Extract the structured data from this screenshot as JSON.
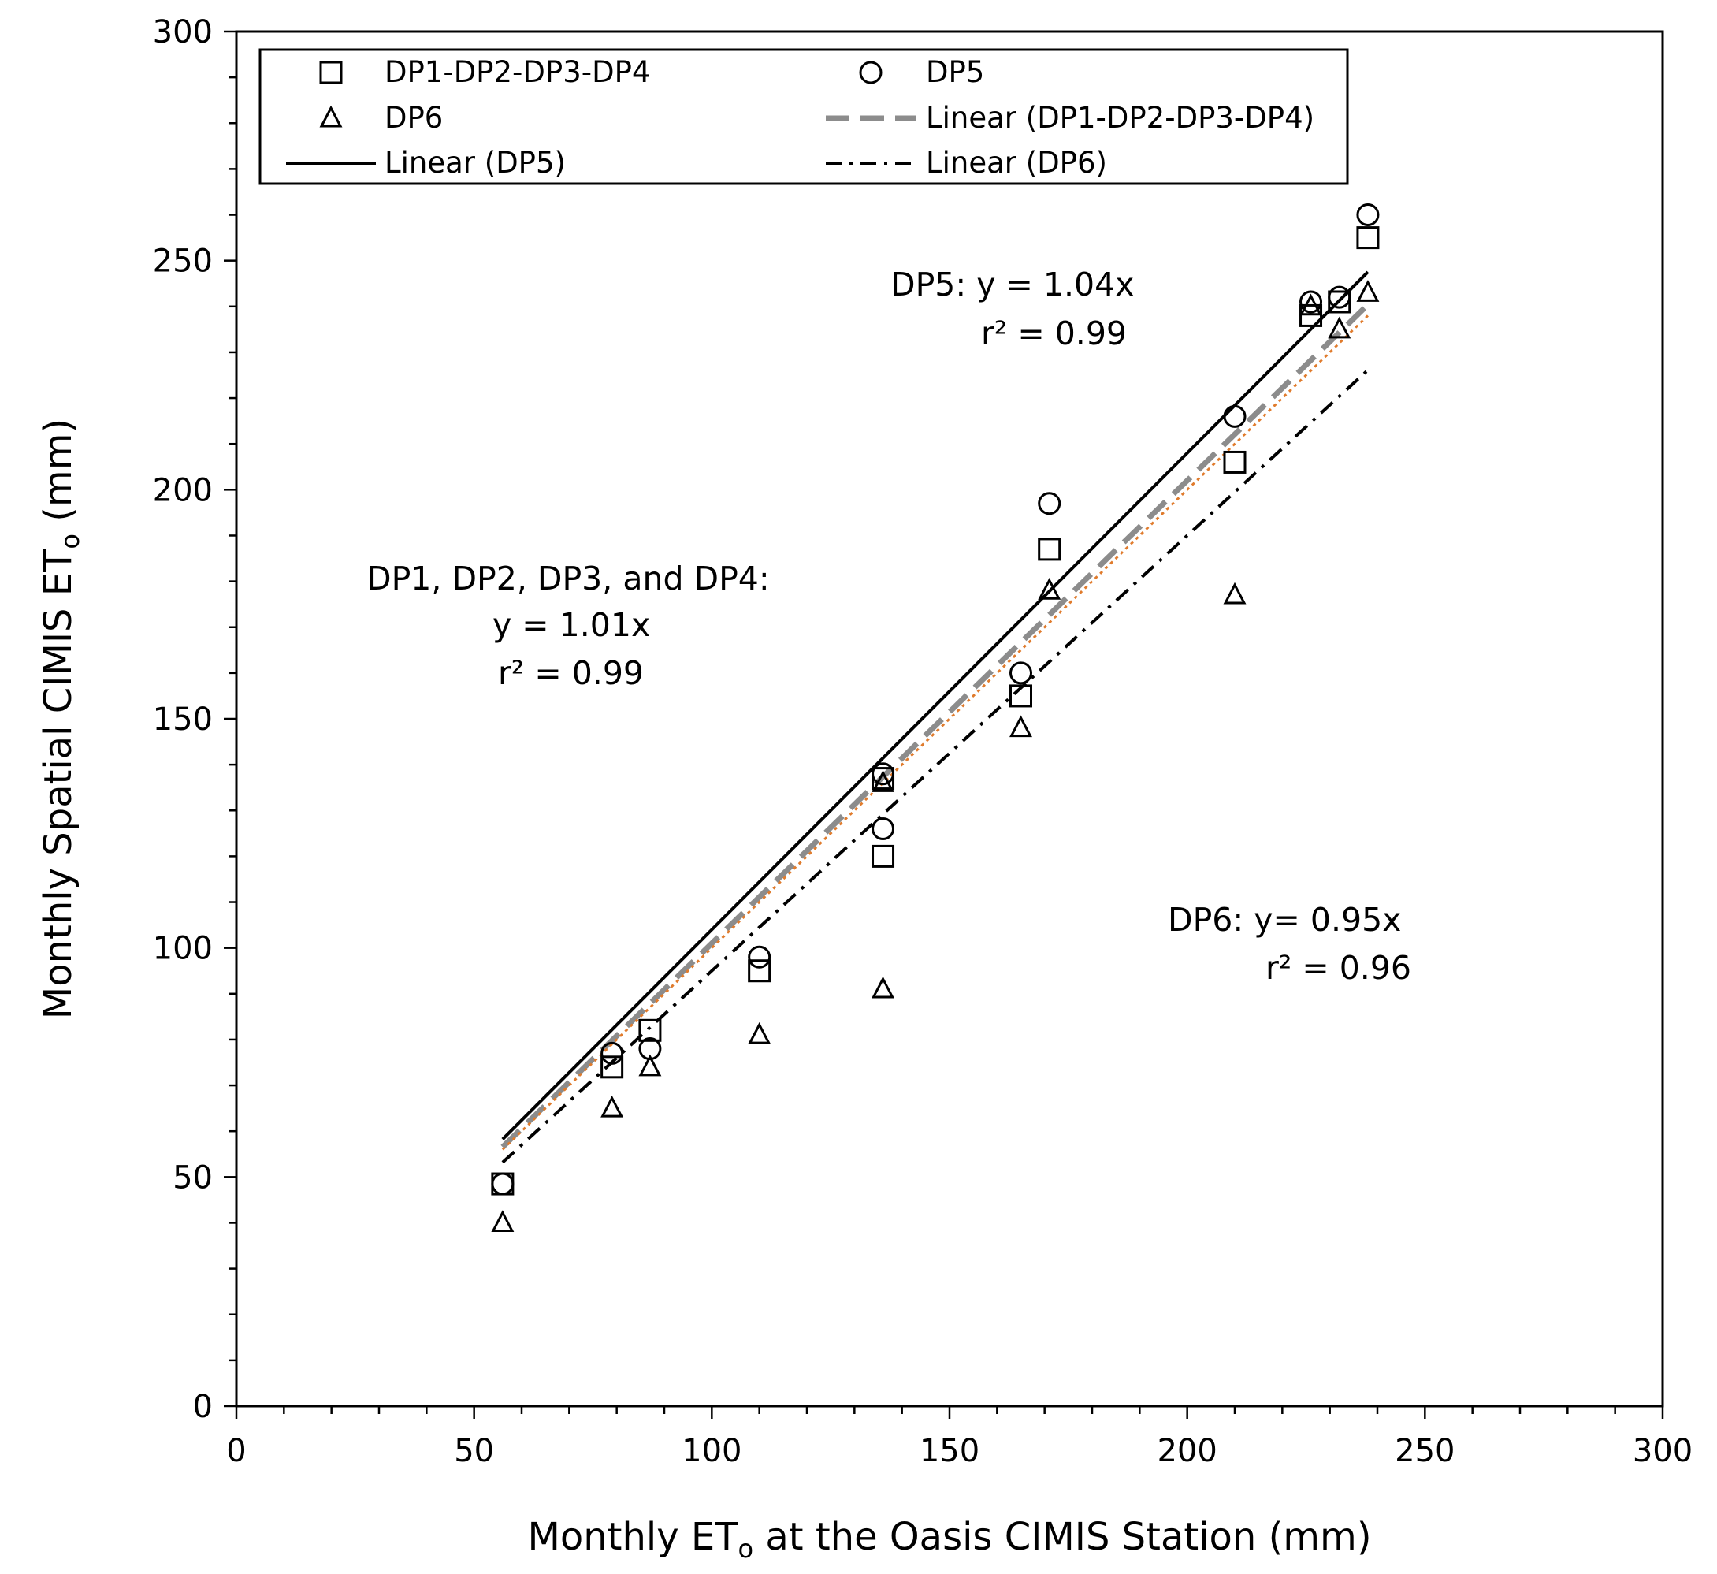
{
  "chart_data": {
    "type": "scatter",
    "xlabel": {
      "prefix": "Monthly ET",
      "sub": "o",
      "suffix": " at the Oasis CIMIS Station (mm)"
    },
    "ylabel": {
      "prefix": "Monthly Spatial CIMIS ET",
      "sub": "o",
      "suffix": " (mm)"
    },
    "xlim": [
      0,
      300
    ],
    "ylim": [
      0,
      300
    ],
    "xticks": [
      0,
      50,
      100,
      150,
      200,
      250,
      300
    ],
    "yticks": [
      0,
      50,
      100,
      150,
      200,
      250,
      300
    ],
    "minor_tick_step": 10,
    "grid": false,
    "legend_position": "top",
    "series": [
      {
        "name": "DP1-DP2-DP3-DP4",
        "marker": "square",
        "points": [
          [
            56,
            48.5
          ],
          [
            79,
            74
          ],
          [
            87,
            82
          ],
          [
            110,
            95
          ],
          [
            136,
            120
          ],
          [
            136,
            137
          ],
          [
            165,
            155
          ],
          [
            171,
            187
          ],
          [
            210,
            206
          ],
          [
            226,
            238
          ],
          [
            232,
            241
          ],
          [
            238,
            255
          ]
        ]
      },
      {
        "name": "DP5",
        "marker": "circle",
        "points": [
          [
            56,
            48.5
          ],
          [
            79,
            77
          ],
          [
            87,
            78
          ],
          [
            110,
            98
          ],
          [
            136,
            126
          ],
          [
            136,
            138
          ],
          [
            165,
            160
          ],
          [
            171,
            197
          ],
          [
            210,
            216
          ],
          [
            226,
            241
          ],
          [
            232,
            242
          ],
          [
            238,
            260
          ]
        ]
      },
      {
        "name": "DP6",
        "marker": "triangle",
        "points": [
          [
            56,
            40
          ],
          [
            79,
            65
          ],
          [
            87,
            74
          ],
          [
            110,
            81
          ],
          [
            136,
            91
          ],
          [
            136,
            136
          ],
          [
            165,
            148
          ],
          [
            171,
            178
          ],
          [
            210,
            177
          ],
          [
            226,
            240
          ],
          [
            232,
            235
          ],
          [
            238,
            243
          ]
        ]
      }
    ],
    "trendlines": [
      {
        "name": "Linear (DP1-DP2-DP3-DP4)",
        "slope": 1.01,
        "x_range": [
          56,
          238
        ],
        "style": "gray-dashed",
        "color": "#8c8c8c"
      },
      {
        "name": "Linear (DP5)",
        "slope": 1.04,
        "x_range": [
          56,
          238
        ],
        "style": "solid",
        "color": "#000000"
      },
      {
        "name": "Linear (DP6)",
        "slope": 0.95,
        "x_range": [
          56,
          238
        ],
        "style": "dash-dot",
        "color": "#000000"
      },
      {
        "name": "",
        "slope": 1.0,
        "x_range": [
          56,
          238
        ],
        "style": "dotted",
        "color": "#e07b2c"
      }
    ],
    "legend": [
      {
        "label": "DP1-DP2-DP3-DP4",
        "symbol": "square"
      },
      {
        "label": "DP5",
        "symbol": "circle"
      },
      {
        "label": "DP6",
        "symbol": "triangle"
      },
      {
        "label": "Linear (DP1-DP2-DP3-DP4)",
        "symbol": "gray-dashed"
      },
      {
        "label": "Linear (DP5)",
        "symbol": "solid"
      },
      {
        "label": "Linear (DP6)",
        "symbol": "dash-dot"
      }
    ],
    "annotations": {
      "dp5": {
        "eq": "DP5:  y = 1.04x",
        "r2": "r² = 0.99"
      },
      "dp1234": {
        "title": "DP1, DP2, DP3, and DP4:",
        "eq": "y = 1.01x",
        "r2": "r² = 0.99"
      },
      "dp6": {
        "eq": "DP6:   y= 0.95x",
        "r2": "r² = 0.96"
      }
    }
  }
}
